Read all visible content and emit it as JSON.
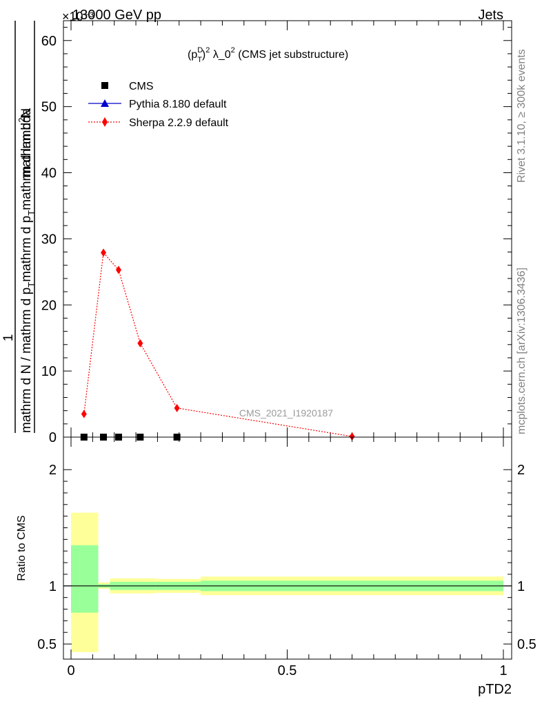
{
  "header": {
    "left": "13000 GeV pp",
    "right": "Jets",
    "exponent": "×10⁻³"
  },
  "side_labels": {
    "rivet": "Rivet 3.1.10, ≥ 300k events",
    "mcplots": "mcplots.cern.ch [arXiv:1306.3436]"
  },
  "chart_data": [
    {
      "type": "line",
      "title": "(p_T^D)² λ_0² (CMS jet substructure)",
      "title_parts": {
        "open": "(p",
        "sup": "D",
        "sub": "T",
        "close": ")",
        "sup2": "2",
        "mid": " λ_0",
        "sup3": "2",
        "rest": " (CMS jet substructure)"
      },
      "ylabel_numerator": "1",
      "ylabel_fraction_top": "mathrm d²N",
      "ylabel_fraction_bottom": "mathrm d N / mathrm d p_T mathrm d p_T mathrm d lambda",
      "ylabel_parts": {
        "one": "1",
        "num_text": "mathrm d",
        "num_sup": "2",
        "num_tail": "N",
        "lower": "mathrm d N / mathrm d p",
        "lower_sub": "T",
        "lower_mid": "mathrm d p",
        "lower_sub2": "T",
        "lower_tail": "mathrm d lambda"
      },
      "y_scale_exponent": -3,
      "xlim": [
        0,
        1
      ],
      "ylim": [
        0,
        63
      ],
      "y_ticks": [
        0,
        10,
        20,
        30,
        40,
        50,
        60
      ],
      "y_tick_labels": [
        "0",
        "10",
        "20",
        "30",
        "40",
        "50",
        "60"
      ],
      "watermark": "CMS_2021_I1920187",
      "legend": [
        {
          "label": "CMS",
          "marker": "square",
          "color": "#000000"
        },
        {
          "label": "Pythia 8.180 default",
          "marker": "triangle",
          "color": "#0000cc"
        },
        {
          "label": "Sherpa 2.2.9 default",
          "marker": "diamond",
          "color": "#ff0000"
        }
      ],
      "series": [
        {
          "name": "CMS",
          "color": "#000000",
          "marker": "square",
          "x": [
            0.03,
            0.075,
            0.11,
            0.16,
            0.245
          ],
          "y": [
            0.0,
            0.0,
            0.0,
            0.0,
            0.0
          ]
        },
        {
          "name": "Pythia 8.180 default",
          "color": "#0000cc",
          "marker": "triangle",
          "x": [],
          "y": []
        },
        {
          "name": "Sherpa 2.2.9 default",
          "color": "#ff0000",
          "marker": "diamond",
          "line_style": "dotted",
          "x": [
            0.03,
            0.075,
            0.11,
            0.16,
            0.245,
            0.65
          ],
          "y": [
            3.5,
            27.9,
            25.3,
            14.2,
            4.4,
            0.1
          ]
        }
      ]
    },
    {
      "type": "area",
      "ylabel": "Ratio to CMS",
      "xlabel": "pTD2",
      "xlim": [
        0,
        1
      ],
      "ylim": [
        0.37,
        2.28
      ],
      "y_ticks": [
        0.5,
        1,
        2
      ],
      "y_tick_labels": [
        "0.5",
        "1",
        "2"
      ],
      "x_ticks": [
        0,
        0.5,
        1
      ],
      "x_tick_labels": [
        "0",
        "0.5",
        "1"
      ],
      "reference_line": 1,
      "bands": [
        {
          "x0": 0.0,
          "x1": 0.063,
          "outer": [
            0.43,
            1.63
          ],
          "inner": [
            0.77,
            1.35
          ]
        },
        {
          "x0": 0.063,
          "x1": 0.09,
          "outer": [
            0.975,
            1.03
          ],
          "inner": [
            0.985,
            1.015
          ]
        },
        {
          "x0": 0.09,
          "x1": 0.195,
          "outer": [
            0.935,
            1.065
          ],
          "inner": [
            0.965,
            1.035
          ]
        },
        {
          "x0": 0.195,
          "x1": 0.3,
          "outer": [
            0.94,
            1.06
          ],
          "inner": [
            0.965,
            1.035
          ]
        },
        {
          "x0": 0.3,
          "x1": 1.0,
          "outer": [
            0.92,
            1.08
          ],
          "inner": [
            0.955,
            1.045
          ]
        }
      ],
      "band_colors": {
        "outer": "#ffff99",
        "inner": "#99ff99"
      }
    }
  ]
}
